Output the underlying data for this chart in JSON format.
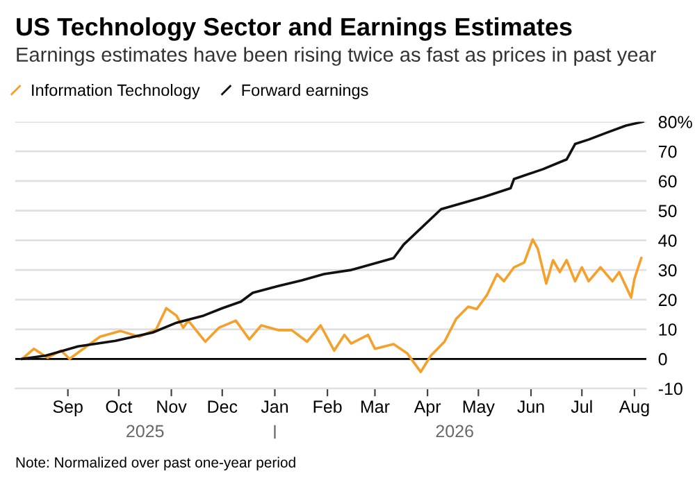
{
  "chart_data": {
    "type": "line",
    "title": "US Technology Sector and Earnings Estimates",
    "subtitle": "Earnings estimates have been rising twice as fast as prices in past year",
    "series": [
      {
        "name": "Information Technology",
        "color": "#f5a02a",
        "x": [
          "2025-08-05",
          "2025-08-12",
          "2025-08-20",
          "2025-08-28",
          "2025-09-02",
          "2025-09-12",
          "2025-09-20",
          "2025-10-02",
          "2025-10-13",
          "2025-10-23",
          "2025-10-29",
          "2025-11-04",
          "2025-11-08",
          "2025-11-11",
          "2025-11-21",
          "2025-11-29",
          "2025-12-09",
          "2025-12-17",
          "2025-12-24",
          "2026-01-03",
          "2026-01-11",
          "2026-01-20",
          "2026-01-28",
          "2026-02-05",
          "2026-02-11",
          "2026-02-15",
          "2026-02-25",
          "2026-03-01",
          "2026-03-12",
          "2026-03-20",
          "2026-03-28",
          "2026-04-03",
          "2026-04-11",
          "2026-04-18",
          "2026-04-25",
          "2026-04-30",
          "2026-05-06",
          "2026-05-12",
          "2026-05-16",
          "2026-05-22",
          "2026-05-28",
          "2026-06-02",
          "2026-06-05",
          "2026-06-10",
          "2026-06-14",
          "2026-06-18",
          "2026-06-22",
          "2026-06-27",
          "2026-07-01",
          "2026-07-05",
          "2026-07-12",
          "2026-07-19",
          "2026-07-23",
          "2026-07-30",
          "2026-08-01",
          "2026-08-05"
        ],
        "values": [
          0,
          3.4,
          0.4,
          2.8,
          0,
          4.2,
          7.5,
          9.4,
          7.5,
          9.9,
          17.1,
          14.6,
          10.5,
          12.9,
          5.8,
          10.5,
          12.9,
          6.6,
          11.3,
          9.7,
          9.7,
          5.8,
          11.3,
          2.8,
          8.1,
          5.2,
          8.1,
          3.4,
          5,
          1.9,
          -4.4,
          1.1,
          5.8,
          13.6,
          17.6,
          16.8,
          21.5,
          28.6,
          26.2,
          30.9,
          32.5,
          40.3,
          37.2,
          25.4,
          33.3,
          29.3,
          33.3,
          26.2,
          30.9,
          26.2,
          30.9,
          26.2,
          29.3,
          20.7,
          27,
          34
        ]
      },
      {
        "name": "Forward earnings",
        "color": "#111111",
        "x": [
          "2025-08-05",
          "2025-08-19",
          "2025-09-07",
          "2025-09-29",
          "2025-10-21",
          "2025-11-04",
          "2025-11-20",
          "2025-12-01",
          "2025-12-12",
          "2025-12-19",
          "2026-01-03",
          "2026-01-17",
          "2026-01-30",
          "2026-02-15",
          "2026-03-12",
          "2026-03-18",
          "2026-04-09",
          "2026-05-04",
          "2026-05-20",
          "2026-05-22",
          "2026-06-08",
          "2026-06-22",
          "2026-06-27",
          "2026-07-05",
          "2026-07-16",
          "2026-07-27",
          "2026-08-06"
        ],
        "values": [
          0,
          1.1,
          4.2,
          6.1,
          8.9,
          12.2,
          14.6,
          17.1,
          19.3,
          22.3,
          24.6,
          26.5,
          28.6,
          30,
          34,
          38.6,
          50.5,
          54.6,
          57.6,
          60.7,
          64,
          67.3,
          72.5,
          74,
          76.4,
          78.7,
          80
        ]
      }
    ],
    "xlim": [
      "2025-08-01",
      "2026-08-08"
    ],
    "xticks": [
      {
        "value": "2025-09-01",
        "label": "Sep"
      },
      {
        "value": "2025-10-01",
        "label": "Oct"
      },
      {
        "value": "2025-11-01",
        "label": "Nov"
      },
      {
        "value": "2025-12-01",
        "label": "Dec"
      },
      {
        "value": "2026-01-01",
        "label": "Jan"
      },
      {
        "value": "2026-02-01",
        "label": "Feb"
      },
      {
        "value": "2026-03-01",
        "label": "Mar"
      },
      {
        "value": "2026-04-01",
        "label": "Apr"
      },
      {
        "value": "2026-05-01",
        "label": "May"
      },
      {
        "value": "2026-06-01",
        "label": "Jun"
      },
      {
        "value": "2026-07-01",
        "label": "Jul"
      },
      {
        "value": "2026-08-01",
        "label": "Aug"
      }
    ],
    "ylim": [
      -10,
      80
    ],
    "yticks": [
      -10,
      0,
      10,
      20,
      30,
      40,
      50,
      60,
      70,
      {
        "value": 80,
        "label": "80%"
      }
    ],
    "ref_lines": [
      {
        "axis": "y",
        "value": 0,
        "color": "#000000"
      }
    ],
    "grid": "y",
    "legend": "top left",
    "line_style": "solid",
    "marker": "none",
    "annotations": [
      "2025",
      "2026",
      "Note: Normalized over past one-year period"
    ]
  }
}
